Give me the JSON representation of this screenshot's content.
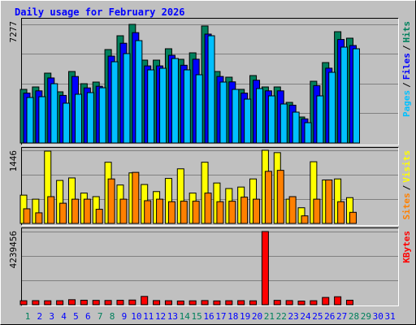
{
  "title": "Daily usage for February 2026",
  "separator": "/",
  "days": [
    "1",
    "2",
    "3",
    "4",
    "5",
    "6",
    "7",
    "8",
    "9",
    "10",
    "11",
    "12",
    "13",
    "14",
    "15",
    "16",
    "17",
    "18",
    "19",
    "20",
    "21",
    "22",
    "23",
    "24",
    "25",
    "26",
    "27",
    "28",
    "29",
    "30",
    "31"
  ],
  "day_color": "#0000ff",
  "weekend_color": "#00805c",
  "weekend": [
    0,
    6,
    7,
    13,
    14,
    20,
    21,
    27,
    28
  ],
  "chart_data": [
    {
      "type": "bar",
      "ylim": [
        0,
        7277
      ],
      "yticks": [
        7277
      ],
      "series": [
        {
          "name": "Pages",
          "color": "#00c0ff",
          "values": [
            2791,
            2841,
            3638,
            2442,
            2990,
            3090,
            3389,
            4984,
            5482,
            6280,
            4486,
            4585,
            5183,
            4486,
            4187,
            6579,
            3738,
            3289,
            2691,
            3339,
            2891,
            2392,
            1894,
            1246,
            2891,
            4336,
            5881,
            5781,
            null,
            null,
            null
          ]
        },
        {
          "name": "Files",
          "color": "#0000ff",
          "values": [
            3060,
            3200,
            3990,
            2920,
            4080,
            3380,
            3480,
            5330,
            6120,
            6770,
            4730,
            4730,
            5380,
            4770,
            5140,
            6680,
            4080,
            3750,
            3060,
            3850,
            3200,
            3200,
            2320,
            1480,
            3520,
            4590,
            6350,
            5980,
            null,
            null,
            null
          ]
        },
        {
          "name": "Hits",
          "color": "#00805c",
          "values": [
            3290,
            3439,
            4286,
            3140,
            4386,
            3638,
            3738,
            5732,
            6579,
            7277,
            5084,
            5084,
            5782,
            5134,
            5532,
            7180,
            4386,
            4037,
            3290,
            4137,
            3439,
            3439,
            2492,
            1595,
            3788,
            4934,
            6828,
            6430,
            null,
            null,
            null
          ]
        }
      ]
    },
    {
      "type": "bar",
      "ylim": [
        0,
        1446
      ],
      "yticks": [
        1446
      ],
      "series": [
        {
          "name": "Sites",
          "color": "#ff8000",
          "values": [
            290,
            210,
            530,
            400,
            480,
            480,
            280,
            880,
            480,
            1010,
            450,
            480,
            430,
            440,
            440,
            600,
            430,
            440,
            520,
            480,
            1030,
            1050,
            530,
            150,
            480,
            860,
            430,
            220,
            null,
            null,
            null
          ]
        },
        {
          "name": "Visits",
          "color": "#ffff00",
          "values": [
            560,
            480,
            1430,
            850,
            900,
            600,
            530,
            1210,
            760,
            1000,
            770,
            630,
            890,
            1080,
            600,
            1210,
            800,
            690,
            720,
            880,
            1446,
            1400,
            480,
            310,
            1220,
            860,
            880,
            510,
            null,
            null,
            null
          ]
        }
      ]
    },
    {
      "type": "bar",
      "ylim": [
        0,
        4239456
      ],
      "yticks": [
        4239456
      ],
      "series": [
        {
          "name": "KBytes",
          "color": "#ff0000",
          "values": [
            230000,
            235000,
            228000,
            232000,
            290000,
            260000,
            250000,
            245000,
            255000,
            270000,
            480000,
            240000,
            230000,
            215000,
            225000,
            240000,
            220000,
            230000,
            235000,
            225000,
            4239456,
            250000,
            240000,
            210000,
            230000,
            420000,
            460000,
            260000,
            null,
            null,
            null
          ]
        }
      ]
    }
  ]
}
